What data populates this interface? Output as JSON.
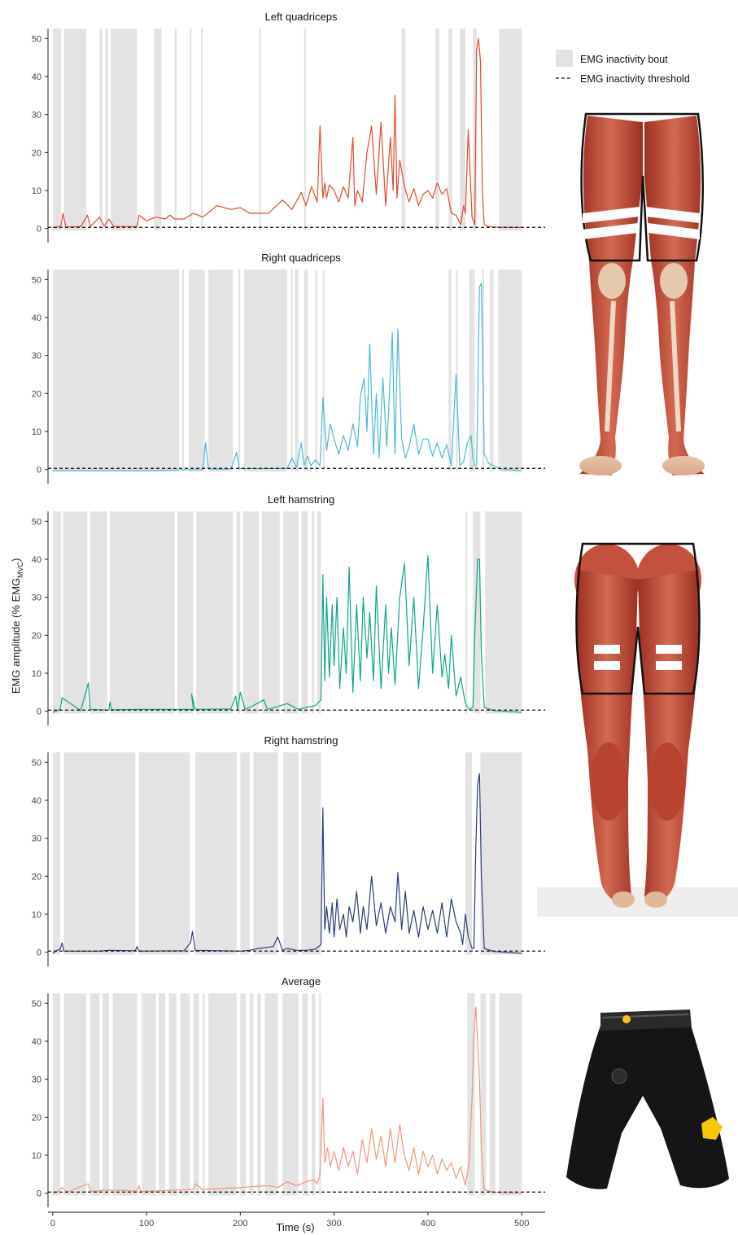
{
  "legend": {
    "bout_label": "EMG inactivity bout",
    "threshold_label": "EMG inactivity threshold"
  },
  "y_axis_label_prefix": "EMG amplitude (% EMG",
  "y_axis_label_sub": "MVC",
  "y_axis_label_suffix": ")",
  "x_axis_label": "Time (s)",
  "illustrations": [
    "front-leg-muscles-illustration",
    "back-leg-muscles-illustration",
    "emg-shorts-illustration"
  ],
  "chart_data": [
    {
      "type": "line",
      "title": "Left quadriceps",
      "color": "#e34a2f",
      "xlim": [
        -5,
        525
      ],
      "ylim": [
        0,
        52
      ],
      "yticks": [
        0,
        10,
        20,
        30,
        40,
        50
      ],
      "xticks": [
        0,
        100,
        200,
        300,
        400,
        500
      ],
      "threshold": 0.3,
      "inactivity_bouts": [
        [
          0,
          9
        ],
        [
          12,
          36
        ],
        [
          50,
          53
        ],
        [
          56,
          59
        ],
        [
          62,
          90
        ],
        [
          108,
          116
        ],
        [
          130,
          132
        ],
        [
          146,
          148
        ],
        [
          158,
          160
        ],
        [
          220,
          222
        ],
        [
          268,
          270
        ],
        [
          372,
          376
        ],
        [
          408,
          412
        ],
        [
          422,
          426
        ],
        [
          434,
          440
        ],
        [
          448,
          452
        ],
        [
          476,
          500
        ]
      ],
      "x": [
        0,
        5,
        9,
        11,
        14,
        30,
        37,
        40,
        50,
        55,
        60,
        65,
        90,
        92,
        100,
        110,
        120,
        125,
        130,
        140,
        150,
        160,
        175,
        190,
        200,
        210,
        230,
        245,
        255,
        265,
        270,
        276,
        282,
        285,
        288,
        290,
        292,
        295,
        300,
        305,
        310,
        315,
        320,
        322,
        325,
        330,
        335,
        340,
        345,
        350,
        355,
        360,
        363,
        365,
        367,
        370,
        375,
        380,
        385,
        390,
        395,
        400,
        405,
        410,
        415,
        420,
        425,
        430,
        435,
        438,
        440,
        443,
        447,
        450,
        452,
        454,
        456,
        458,
        460,
        465,
        470,
        480,
        500
      ],
      "values": [
        0.3,
        0.4,
        0.8,
        4.0,
        0.4,
        0.5,
        3.5,
        0.5,
        3.0,
        0.6,
        2.5,
        0.5,
        0.5,
        3.5,
        2.0,
        3.0,
        2.5,
        3.5,
        2.5,
        2.5,
        4.0,
        3.0,
        6.0,
        5.0,
        5.5,
        4.0,
        4.0,
        7.5,
        5.0,
        9.5,
        6.0,
        11.0,
        7.0,
        27.0,
        8.0,
        12.0,
        8.0,
        11.5,
        10.0,
        7.0,
        11.0,
        8.0,
        24.0,
        6.0,
        10.0,
        7.0,
        20.0,
        27.0,
        9.0,
        28.0,
        6.0,
        24.0,
        10.0,
        35.0,
        8.0,
        18.0,
        11.0,
        7.0,
        10.5,
        6.0,
        9.0,
        10.0,
        8.0,
        12.0,
        9.0,
        10.5,
        4.0,
        3.5,
        1.0,
        6.0,
        4.0,
        26.0,
        3.0,
        1.0,
        47.0,
        50.0,
        44.0,
        10.0,
        1.0,
        0.5,
        0.4,
        0.3,
        0.3
      ]
    },
    {
      "type": "line",
      "title": "Right quadriceps",
      "color": "#4db8d8",
      "xlim": [
        -5,
        525
      ],
      "ylim": [
        0,
        52
      ],
      "yticks": [
        0,
        10,
        20,
        30,
        40,
        50
      ],
      "xticks": [
        0,
        100,
        200,
        300,
        400,
        500
      ],
      "threshold": 0.3,
      "inactivity_bouts": [
        [
          0,
          135
        ],
        [
          138,
          140
        ],
        [
          145,
          162
        ],
        [
          166,
          192
        ],
        [
          198,
          200
        ],
        [
          204,
          250
        ],
        [
          254,
          256
        ],
        [
          258,
          262
        ],
        [
          268,
          272
        ],
        [
          280,
          282
        ],
        [
          288,
          290
        ],
        [
          422,
          425
        ],
        [
          430,
          432
        ],
        [
          444,
          450
        ],
        [
          458,
          460
        ],
        [
          466,
          470
        ],
        [
          475,
          500
        ]
      ],
      "x": [
        0,
        100,
        160,
        163,
        166,
        190,
        194,
        196,
        199,
        250,
        255,
        260,
        265,
        268,
        272,
        275,
        280,
        285,
        288,
        292,
        296,
        300,
        305,
        310,
        315,
        320,
        325,
        328,
        332,
        335,
        338,
        342,
        345,
        348,
        352,
        356,
        358,
        362,
        365,
        368,
        372,
        376,
        380,
        385,
        390,
        395,
        400,
        405,
        410,
        415,
        420,
        425,
        430,
        434,
        438,
        442,
        446,
        448,
        450,
        452,
        455,
        457,
        460,
        465,
        470,
        475,
        480,
        500
      ],
      "values": [
        -0.3,
        -0.3,
        0.0,
        7.0,
        0.1,
        0.1,
        3.0,
        4.5,
        0.2,
        0.3,
        3.0,
        0.5,
        7.0,
        1.0,
        3.5,
        1.0,
        2.5,
        1.0,
        19.0,
        5.0,
        12.0,
        8.0,
        4.0,
        9.0,
        5.0,
        12.0,
        6.0,
        19.0,
        24.0,
        10.0,
        33.0,
        4.0,
        20.0,
        3.0,
        24.0,
        6.0,
        15.0,
        36.0,
        4.0,
        37.0,
        8.0,
        3.0,
        6.0,
        12.0,
        4.0,
        8.0,
        8.0,
        3.5,
        7.0,
        3.0,
        6.5,
        1.0,
        25.0,
        1.0,
        2.0,
        7.0,
        9.0,
        3.0,
        1.0,
        1.0,
        48.0,
        49.0,
        4.0,
        1.5,
        1.0,
        0.5,
        0.0,
        -0.3
      ]
    },
    {
      "type": "line",
      "title": "Left hamstring",
      "color": "#0ea58a",
      "xlim": [
        -5,
        525
      ],
      "ylim": [
        0,
        52
      ],
      "yticks": [
        0,
        10,
        20,
        30,
        40,
        50
      ],
      "xticks": [
        0,
        100,
        200,
        300,
        400,
        500
      ],
      "threshold": 0.3,
      "inactivity_bouts": [
        [
          0,
          9
        ],
        [
          11,
          37
        ],
        [
          40,
          58
        ],
        [
          61,
          130
        ],
        [
          133,
          150
        ],
        [
          153,
          192
        ],
        [
          196,
          200
        ],
        [
          203,
          220
        ],
        [
          223,
          242
        ],
        [
          246,
          262
        ],
        [
          265,
          272
        ],
        [
          276,
          279
        ],
        [
          282,
          286
        ],
        [
          440,
          442
        ],
        [
          448,
          456
        ],
        [
          461,
          500
        ]
      ],
      "x": [
        0,
        5,
        8,
        10,
        30,
        38,
        40,
        60,
        61,
        63,
        90,
        150,
        148,
        152,
        190,
        195,
        197,
        200,
        205,
        210,
        225,
        228,
        230,
        250,
        262,
        270,
        280,
        286,
        288,
        290,
        292,
        295,
        298,
        300,
        303,
        306,
        310,
        313,
        316,
        320,
        324,
        328,
        331,
        335,
        338,
        342,
        345,
        350,
        355,
        358,
        361,
        365,
        370,
        375,
        380,
        385,
        390,
        395,
        400,
        405,
        410,
        415,
        418,
        422,
        425,
        430,
        435,
        440,
        444,
        448,
        450,
        453,
        455,
        457,
        460,
        470,
        500
      ],
      "values": [
        -0.3,
        0.2,
        0.5,
        3.5,
        0.2,
        7.5,
        0.5,
        0.3,
        2.5,
        0.4,
        0.5,
        0.5,
        4.5,
        0.5,
        0.6,
        4.0,
        0.3,
        5.0,
        0.5,
        1.0,
        3.0,
        1.0,
        0.5,
        2.0,
        0.5,
        1.0,
        1.5,
        3.0,
        36.0,
        8.0,
        30.0,
        9.0,
        28.0,
        12.0,
        30.0,
        6.0,
        22.0,
        10.0,
        38.0,
        5.0,
        28.0,
        8.0,
        30.0,
        14.0,
        26.0,
        8.0,
        33.0,
        6.0,
        28.0,
        10.0,
        22.0,
        7.0,
        30.0,
        39.0,
        12.0,
        30.0,
        6.0,
        22.0,
        41.0,
        10.0,
        28.0,
        9.0,
        15.0,
        6.0,
        20.0,
        4.0,
        9.0,
        2.0,
        0.5,
        1.0,
        20.0,
        40.0,
        40.0,
        15.0,
        1.0,
        0.2,
        -0.3
      ]
    },
    {
      "type": "line",
      "title": "Right hamstring",
      "color": "#283e78",
      "xlim": [
        -5,
        525
      ],
      "ylim": [
        0,
        52
      ],
      "yticks": [
        0,
        10,
        20,
        30,
        40,
        50
      ],
      "xticks": [
        0,
        100,
        200,
        300,
        400,
        500
      ],
      "threshold": 0.3,
      "inactivity_bouts": [
        [
          0,
          8
        ],
        [
          12,
          88
        ],
        [
          92,
          146
        ],
        [
          152,
          196
        ],
        [
          200,
          210
        ],
        [
          214,
          240
        ],
        [
          246,
          262
        ],
        [
          265,
          286
        ],
        [
          440,
          447
        ],
        [
          456,
          500
        ]
      ],
      "x": [
        0,
        5,
        8,
        10,
        12,
        50,
        60,
        88,
        90,
        92,
        140,
        147,
        149,
        152,
        200,
        210,
        220,
        235,
        240,
        245,
        250,
        260,
        270,
        280,
        286,
        288,
        290,
        292,
        295,
        298,
        300,
        303,
        306,
        310,
        313,
        316,
        320,
        324,
        328,
        331,
        335,
        340,
        345,
        350,
        355,
        360,
        365,
        368,
        372,
        376,
        380,
        385,
        390,
        395,
        400,
        405,
        410,
        415,
        420,
        425,
        430,
        435,
        437,
        440,
        443,
        447,
        449,
        451,
        453,
        455,
        457,
        460,
        470,
        500
      ],
      "values": [
        -0.3,
        0.5,
        0.8,
        2.5,
        0.3,
        0.3,
        0.5,
        0.4,
        1.5,
        0.3,
        0.4,
        2.5,
        5.5,
        0.5,
        0.3,
        0.5,
        1.0,
        1.5,
        4.0,
        0.5,
        1.0,
        0.5,
        0.5,
        0.8,
        2.0,
        38.0,
        6.0,
        12.0,
        5.0,
        13.0,
        4.0,
        14.0,
        6.0,
        10.0,
        4.0,
        12.0,
        8.0,
        16.0,
        5.0,
        12.0,
        6.0,
        20.0,
        7.0,
        13.0,
        5.0,
        12.0,
        8.0,
        21.0,
        6.0,
        16.0,
        5.0,
        11.0,
        4.0,
        12.0,
        6.0,
        11.0,
        5.0,
        13.0,
        4.0,
        14.0,
        8.0,
        5.0,
        2.0,
        10.0,
        4.0,
        1.0,
        1.0,
        27.0,
        44.0,
        47.0,
        20.0,
        1.0,
        0.2,
        -0.3
      ]
    },
    {
      "type": "line",
      "title": "Average",
      "color": "#f2957a",
      "xlim": [
        -5,
        525
      ],
      "ylim": [
        0,
        52
      ],
      "yticks": [
        0,
        10,
        20,
        30,
        40,
        50
      ],
      "xticks": [
        0,
        100,
        200,
        300,
        400,
        500
      ],
      "threshold": 0.3,
      "inactivity_bouts": [
        [
          0,
          8
        ],
        [
          12,
          36
        ],
        [
          40,
          50
        ],
        [
          53,
          60
        ],
        [
          64,
          90
        ],
        [
          95,
          110
        ],
        [
          113,
          120
        ],
        [
          124,
          132
        ],
        [
          136,
          146
        ],
        [
          150,
          156
        ],
        [
          160,
          162
        ],
        [
          166,
          196
        ],
        [
          200,
          206
        ],
        [
          210,
          214
        ],
        [
          218,
          222
        ],
        [
          226,
          240
        ],
        [
          245,
          262
        ],
        [
          266,
          272
        ],
        [
          276,
          280
        ],
        [
          284,
          286
        ],
        [
          442,
          450
        ],
        [
          456,
          462
        ],
        [
          466,
          472
        ],
        [
          476,
          500
        ]
      ],
      "x": [
        0,
        5,
        10,
        15,
        38,
        40,
        60,
        90,
        92,
        94,
        100,
        150,
        152,
        160,
        200,
        230,
        240,
        250,
        260,
        270,
        278,
        282,
        285,
        288,
        290,
        293,
        296,
        300,
        305,
        310,
        315,
        320,
        325,
        330,
        335,
        340,
        345,
        350,
        355,
        360,
        365,
        370,
        375,
        380,
        385,
        390,
        395,
        400,
        405,
        410,
        415,
        420,
        425,
        430,
        435,
        440,
        444,
        447,
        449,
        451,
        453,
        455,
        457,
        460,
        470,
        500
      ],
      "values": [
        0.0,
        0.3,
        1.5,
        0.3,
        2.5,
        0.5,
        0.8,
        0.6,
        2.0,
        0.5,
        0.5,
        1.0,
        2.5,
        1.0,
        1.5,
        2.0,
        1.5,
        3.0,
        2.0,
        3.0,
        3.5,
        2.5,
        5.0,
        25.0,
        8.0,
        12.0,
        7.0,
        11.0,
        6.0,
        12.0,
        7.0,
        11.0,
        5.0,
        14.0,
        8.0,
        17.0,
        9.0,
        15.0,
        7.0,
        17.0,
        8.0,
        18.0,
        10.0,
        6.0,
        12.0,
        5.0,
        11.0,
        7.0,
        10.0,
        5.0,
        9.0,
        6.0,
        8.0,
        4.0,
        7.0,
        2.0,
        8.0,
        25.0,
        42.0,
        49.0,
        40.0,
        30.0,
        12.0,
        1.0,
        0.2,
        0.0
      ]
    }
  ]
}
